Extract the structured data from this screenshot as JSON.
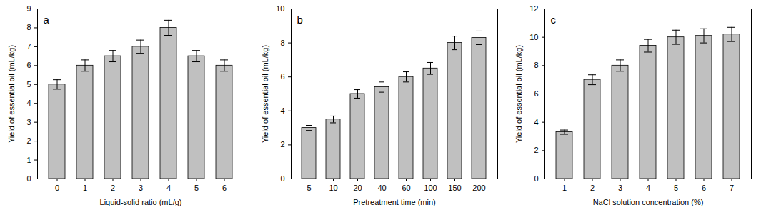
{
  "chart_data": [
    {
      "type": "bar",
      "title": "a",
      "x_label": "Liquid-solid ratio (mL/g)",
      "y_label": "Yield of essential oil (mL/kg)",
      "categories": [
        "0",
        "1",
        "2",
        "3",
        "4",
        "5",
        "6"
      ],
      "values": [
        5.0,
        6.0,
        6.5,
        7.0,
        8.0,
        6.5,
        6.0
      ],
      "errors": [
        0.25,
        0.3,
        0.3,
        0.35,
        0.4,
        0.3,
        0.3
      ],
      "color": "#c0c0c0",
      "ylim": [
        0,
        9
      ],
      "yticks": [
        0,
        1,
        2,
        3,
        4,
        5,
        6,
        7,
        8,
        9
      ],
      "grid": false
    },
    {
      "type": "bar",
      "title": "b",
      "x_label": "Pretreatment time (min)",
      "y_label": "Yield of essential oil (mL/kg)",
      "categories": [
        "5",
        "10",
        "20",
        "40",
        "60",
        "100",
        "150",
        "200"
      ],
      "values": [
        3.0,
        3.5,
        5.0,
        5.4,
        6.0,
        6.5,
        8.0,
        8.3
      ],
      "errors": [
        0.15,
        0.2,
        0.25,
        0.3,
        0.3,
        0.35,
        0.4,
        0.4
      ],
      "color": "#c0c0c0",
      "ylim": [
        0,
        10
      ],
      "yticks": [
        0,
        2,
        4,
        6,
        8,
        10
      ],
      "grid": false
    },
    {
      "type": "bar",
      "title": "c",
      "x_label": "NaCl solution concentration (%)",
      "y_label": "Yield of essential oil (mL/kg)",
      "categories": [
        "1",
        "2",
        "3",
        "4",
        "5",
        "6",
        "7"
      ],
      "values": [
        3.3,
        7.0,
        8.0,
        9.4,
        10.0,
        10.1,
        10.2
      ],
      "errors": [
        0.15,
        0.35,
        0.4,
        0.45,
        0.5,
        0.5,
        0.5
      ],
      "color": "#c0c0c0",
      "ylim": [
        0,
        12
      ],
      "yticks": [
        0,
        2,
        4,
        6,
        8,
        10,
        12
      ],
      "grid": false
    }
  ]
}
